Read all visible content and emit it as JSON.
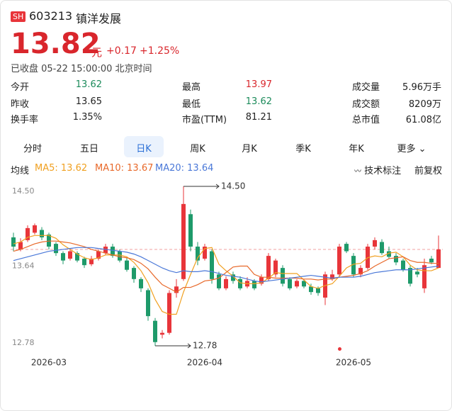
{
  "header": {
    "badge": "SH",
    "code": "603213",
    "name": "镇洋发展",
    "price": "13.82",
    "unit": "元",
    "change": "+0.17",
    "change_pct": "+1.25%",
    "status": "已收盘 05-22 15:00:00 北京时间"
  },
  "stats": [
    [
      {
        "label": "今开",
        "value": "13.62",
        "color": "#1c8b5b"
      },
      {
        "label": "最高",
        "value": "13.97",
        "color": "#d9262c"
      },
      {
        "label": "成交量",
        "value": "5.96万手"
      }
    ],
    [
      {
        "label": "昨收",
        "value": "13.65"
      },
      {
        "label": "最低",
        "value": "13.62",
        "color": "#1c8b5b"
      },
      {
        "label": "成交额",
        "value": "8209万"
      }
    ],
    [
      {
        "label": "换手率",
        "value": "1.35%"
      },
      {
        "label": "市盈(TTM)",
        "value": "81.21"
      },
      {
        "label": "总市值",
        "value": "61.08亿"
      }
    ]
  ],
  "tabs": [
    "分时",
    "五日",
    "日K",
    "周K",
    "月K",
    "季K",
    "年K",
    "更多"
  ],
  "active_tab": 2,
  "toolbar": {
    "ma_label": "均线",
    "tech_mark": "技术标注",
    "adjust": "前复权"
  },
  "chart_data": {
    "type": "candlestick",
    "up_color": "#e8353a",
    "down_color": "#1e9a6a",
    "categories": [
      null,
      null,
      null,
      null,
      null,
      "2026-03",
      null,
      null,
      null,
      null,
      null,
      null,
      null,
      null,
      null,
      null,
      null,
      null,
      null,
      null,
      null,
      null,
      null,
      null,
      null,
      null,
      null,
      "2026-04",
      null,
      null,
      null,
      null,
      null,
      null,
      null,
      null,
      null,
      null,
      null,
      null,
      null,
      null,
      null,
      null,
      null,
      null,
      null,
      null,
      "2026-05",
      null,
      null,
      null,
      null,
      null,
      null,
      null,
      null,
      null,
      null,
      null,
      null
    ],
    "open": [
      13.95,
      13.82,
      13.92,
      14.0,
      14.03,
      13.98,
      13.88,
      13.78,
      13.72,
      13.78,
      13.72,
      13.66,
      13.72,
      13.78,
      13.85,
      13.8,
      13.7,
      13.62,
      13.5,
      13.38,
      13.05,
      12.9,
      12.92,
      13.35,
      13.5,
      14.2,
      13.85,
      13.72,
      13.8,
      13.55,
      13.4,
      13.55,
      13.5,
      13.42,
      13.48,
      13.45,
      13.5,
      13.55,
      13.62,
      13.5,
      13.42,
      13.48,
      13.42,
      13.4,
      13.3,
      13.5,
      13.55,
      13.88,
      13.75,
      13.55,
      13.62,
      13.85,
      13.9,
      13.8,
      13.75,
      13.7,
      13.62,
      13.58,
      13.4,
      13.72,
      13.62
    ],
    "high": [
      14.0,
      13.94,
      14.08,
      14.1,
      14.06,
      14.0,
      13.9,
      13.8,
      13.83,
      13.8,
      13.74,
      13.75,
      13.82,
      13.88,
      13.88,
      13.82,
      13.73,
      13.64,
      13.52,
      13.4,
      13.08,
      12.95,
      13.38,
      13.5,
      14.5,
      14.25,
      13.9,
      13.88,
      13.82,
      13.58,
      13.53,
      13.58,
      13.53,
      13.52,
      13.5,
      13.55,
      13.78,
      13.72,
      13.65,
      13.52,
      13.5,
      13.5,
      13.45,
      13.42,
      13.58,
      13.6,
      13.88,
      13.9,
      13.78,
      13.65,
      13.88,
      13.95,
      13.93,
      13.85,
      13.78,
      13.72,
      13.65,
      13.62,
      13.72,
      13.75,
      13.97
    ],
    "low": [
      13.8,
      13.8,
      13.9,
      13.98,
      13.92,
      13.82,
      13.75,
      13.66,
      13.7,
      13.68,
      13.62,
      13.64,
      13.7,
      13.76,
      13.73,
      13.68,
      13.58,
      13.46,
      13.36,
      13.05,
      12.78,
      12.86,
      12.9,
      13.3,
      13.48,
      13.8,
      13.65,
      13.7,
      13.45,
      13.38,
      13.38,
      13.45,
      13.38,
      13.4,
      13.38,
      13.43,
      13.48,
      13.52,
      13.42,
      13.38,
      13.4,
      13.4,
      13.33,
      13.32,
      13.22,
      13.48,
      13.52,
      13.78,
      13.52,
      13.52,
      13.6,
      13.82,
      13.76,
      13.72,
      13.65,
      13.58,
      13.42,
      13.52,
      13.35,
      13.66,
      13.62
    ],
    "close": [
      13.85,
      13.9,
      14.05,
      14.08,
      13.95,
      13.85,
      13.78,
      13.7,
      13.8,
      13.7,
      13.65,
      13.72,
      13.8,
      13.85,
      13.75,
      13.7,
      13.6,
      13.5,
      13.4,
      13.1,
      12.82,
      12.92,
      13.35,
      13.42,
      14.31,
      13.85,
      13.7,
      13.85,
      13.5,
      13.4,
      13.5,
      13.48,
      13.4,
      13.48,
      13.4,
      13.52,
      13.75,
      13.7,
      13.45,
      13.4,
      13.48,
      13.42,
      13.36,
      13.35,
      13.55,
      13.55,
      13.85,
      13.8,
      13.55,
      13.62,
      13.85,
      13.92,
      13.78,
      13.74,
      13.68,
      13.6,
      13.45,
      13.55,
      13.65,
      13.68,
      13.82
    ],
    "series": [
      {
        "name": "MA5: 13.62",
        "color": "#f0a020",
        "values": [
          13.88,
          13.9,
          13.95,
          13.97,
          13.97,
          13.97,
          13.94,
          13.87,
          13.82,
          13.77,
          13.73,
          13.71,
          13.73,
          13.76,
          13.76,
          13.76,
          13.74,
          13.68,
          13.59,
          13.46,
          13.28,
          13.15,
          13.12,
          13.12,
          13.36,
          13.55,
          13.73,
          13.83,
          13.84,
          13.66,
          13.59,
          13.53,
          13.46,
          13.45,
          13.45,
          13.46,
          13.51,
          13.57,
          13.56,
          13.56,
          13.56,
          13.49,
          13.42,
          13.4,
          13.43,
          13.45,
          13.53,
          13.62,
          13.66,
          13.67,
          13.73,
          13.75,
          13.74,
          13.78,
          13.79,
          13.74,
          13.65,
          13.6,
          13.59,
          13.59,
          13.62
        ]
      },
      {
        "name": "MA10: 13.67",
        "color": "#e8692a",
        "values": [
          13.8,
          13.82,
          13.85,
          13.88,
          13.9,
          13.91,
          13.91,
          13.9,
          13.89,
          13.87,
          13.85,
          13.82,
          13.8,
          13.78,
          13.76,
          13.74,
          13.73,
          13.71,
          13.67,
          13.61,
          13.52,
          13.44,
          13.4,
          13.36,
          13.41,
          13.41,
          13.44,
          13.48,
          13.49,
          13.51,
          13.57,
          13.63,
          13.64,
          13.64,
          13.55,
          13.52,
          13.52,
          13.51,
          13.51,
          13.51,
          13.51,
          13.5,
          13.5,
          13.49,
          13.5,
          13.5,
          13.52,
          13.53,
          13.54,
          13.56,
          13.59,
          13.64,
          13.68,
          13.72,
          13.73,
          13.74,
          13.7,
          13.68,
          13.68,
          13.67,
          13.67
        ]
      },
      {
        "name": "MA20: 13.64",
        "color": "#4a78d8",
        "values": [
          13.7,
          13.72,
          13.74,
          13.76,
          13.78,
          13.8,
          13.81,
          13.82,
          13.83,
          13.84,
          13.84,
          13.84,
          13.83,
          13.82,
          13.81,
          13.8,
          13.79,
          13.77,
          13.74,
          13.7,
          13.66,
          13.62,
          13.59,
          13.57,
          13.59,
          13.58,
          13.58,
          13.59,
          13.58,
          13.56,
          13.54,
          13.53,
          13.52,
          13.5,
          13.48,
          13.47,
          13.48,
          13.49,
          13.5,
          13.51,
          13.52,
          13.53,
          13.54,
          13.53,
          13.52,
          13.51,
          13.52,
          13.52,
          13.52,
          13.53,
          13.55,
          13.57,
          13.58,
          13.59,
          13.6,
          13.6,
          13.6,
          13.61,
          13.62,
          13.63,
          13.64
        ]
      }
    ],
    "ylim": [
      12.78,
      14.5
    ],
    "yticks": [
      {
        "value": 14.5,
        "label": "14.50"
      },
      13.64,
      12.78
    ],
    "annotations": [
      {
        "value": 14.5,
        "label": "14.50"
      },
      {
        "value": 12.78,
        "label": "12.78"
      }
    ]
  }
}
